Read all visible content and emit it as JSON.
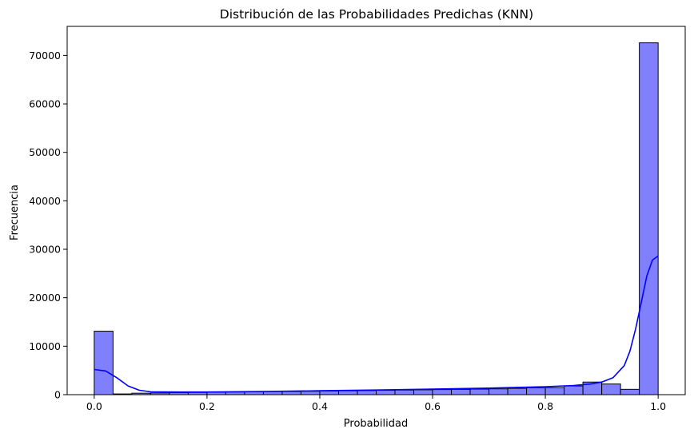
{
  "chart_data": {
    "type": "bar",
    "title": "Distribución de las Probabilidades Predichas (KNN)",
    "xlabel": "Probabilidad",
    "ylabel": "Frecuencia",
    "xlim": [
      -0.0,
      1.0
    ],
    "ylim": [
      0,
      76000
    ],
    "xticks": [
      "0.0",
      "0.2",
      "0.4",
      "0.6",
      "0.8",
      "1.0"
    ],
    "xtick_values": [
      0.0,
      0.2,
      0.4,
      0.6,
      0.8,
      1.0
    ],
    "yticks": [
      "0",
      "10000",
      "20000",
      "30000",
      "40000",
      "50000",
      "60000",
      "70000"
    ],
    "ytick_values": [
      0,
      10000,
      20000,
      30000,
      40000,
      50000,
      60000,
      70000
    ],
    "bin_start": 0.0,
    "bin_end": 1.0,
    "bin_count": 30,
    "counts": [
      13100,
      150,
      300,
      350,
      400,
      450,
      500,
      550,
      600,
      650,
      650,
      700,
      750,
      800,
      850,
      900,
      950,
      1000,
      1050,
      1100,
      1150,
      1200,
      1300,
      1400,
      1450,
      1800,
      2600,
      2200,
      1100,
      72600
    ],
    "kde": {
      "x": [
        0.0,
        0.02,
        0.04,
        0.06,
        0.08,
        0.1,
        0.15,
        0.2,
        0.3,
        0.4,
        0.5,
        0.6,
        0.7,
        0.8,
        0.85,
        0.88,
        0.9,
        0.92,
        0.94,
        0.95,
        0.96,
        0.97,
        0.98,
        0.99,
        1.0
      ],
      "y": [
        5200,
        4900,
        3500,
        1800,
        900,
        600,
        550,
        550,
        650,
        800,
        950,
        1150,
        1350,
        1650,
        1900,
        2200,
        2600,
        3500,
        6000,
        9000,
        13500,
        19000,
        24500,
        27800,
        28600
      ]
    },
    "bar_color": "#8080ff",
    "bar_edge_color": "#000000",
    "kde_color": "#0000ff",
    "grid": false,
    "legend": "none"
  }
}
